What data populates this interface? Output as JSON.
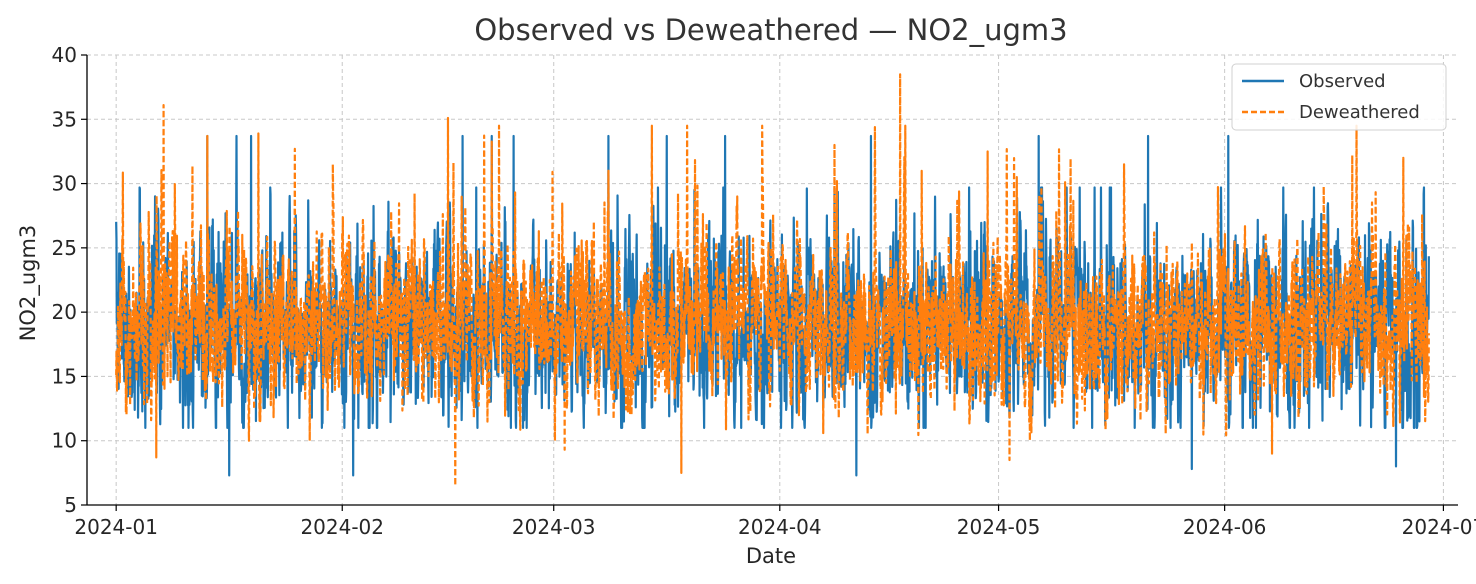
{
  "chart_data": {
    "type": "line",
    "title": "Observed vs Deweathered — NO2_ugm3",
    "xlabel": "Date",
    "ylabel": "NO2_ugm3",
    "ylim": [
      5,
      40
    ],
    "yticks": [
      5,
      10,
      15,
      20,
      25,
      30,
      35,
      40
    ],
    "xlim": [
      "2023-12-28",
      "2024-07-03"
    ],
    "xticks": [
      {
        "date": "2024-01-01",
        "label": "2024-01"
      },
      {
        "date": "2024-02-01",
        "label": "2024-02"
      },
      {
        "date": "2024-03-01",
        "label": "2024-03"
      },
      {
        "date": "2024-04-01",
        "label": "2024-04"
      },
      {
        "date": "2024-05-01",
        "label": "2024-05"
      },
      {
        "date": "2024-06-01",
        "label": "2024-06"
      },
      {
        "date": "2024-07-01",
        "label": "2024-07"
      }
    ],
    "grid": true,
    "legend_position": "top-right",
    "x_range": [
      "2024-01-01",
      "2024-06-29"
    ],
    "series": [
      {
        "name": "Observed",
        "color": "#1f77b4",
        "style": "solid",
        "typical_range": [
          7.5,
          33.7
        ],
        "mean": 18.7,
        "peaks": [
          {
            "x": "2024-01-13",
            "y": 33.7
          },
          {
            "x": "2024-01-17",
            "y": 33.7
          },
          {
            "x": "2024-01-19",
            "y": 33.7
          },
          {
            "x": "2024-02-17",
            "y": 33.7
          },
          {
            "x": "2024-02-21",
            "y": 33.7
          },
          {
            "x": "2024-02-24",
            "y": 33.7
          },
          {
            "x": "2024-03-08",
            "y": 33.7
          },
          {
            "x": "2024-03-16",
            "y": 33.7
          },
          {
            "x": "2024-03-24",
            "y": 33.7
          },
          {
            "x": "2024-04-13",
            "y": 33.7
          },
          {
            "x": "2024-05-06",
            "y": 33.7
          },
          {
            "x": "2024-05-21",
            "y": 33.7
          },
          {
            "x": "2024-06-01",
            "y": 33.7
          }
        ],
        "troughs": [
          {
            "x": "2024-01-16",
            "y": 7.3
          },
          {
            "x": "2024-02-02",
            "y": 7.3
          },
          {
            "x": "2024-04-11",
            "y": 7.3
          },
          {
            "x": "2024-05-27",
            "y": 7.8
          },
          {
            "x": "2024-06-24",
            "y": 8.0
          }
        ]
      },
      {
        "name": "Deweathered",
        "color": "#ff7f0e",
        "style": "dashed",
        "typical_range": [
          6.5,
          38.5
        ],
        "mean": 19.0,
        "peaks": [
          {
            "x": "2024-01-07",
            "y": 36.1
          },
          {
            "x": "2024-01-13",
            "y": 33.7
          },
          {
            "x": "2024-01-20",
            "y": 33.9
          },
          {
            "x": "2024-01-25",
            "y": 32.7
          },
          {
            "x": "2024-02-15",
            "y": 35.1
          },
          {
            "x": "2024-02-22",
            "y": 34.5
          },
          {
            "x": "2024-03-08",
            "y": 31.0
          },
          {
            "x": "2024-04-08",
            "y": 33.0
          },
          {
            "x": "2024-04-17",
            "y": 38.5
          },
          {
            "x": "2024-04-29",
            "y": 32.5
          },
          {
            "x": "2024-05-03",
            "y": 30.5
          },
          {
            "x": "2024-06-18",
            "y": 32.2
          },
          {
            "x": "2024-06-25",
            "y": 32.0
          }
        ],
        "troughs": [
          {
            "x": "2024-01-06",
            "y": 8.7
          },
          {
            "x": "2024-02-16",
            "y": 6.5
          },
          {
            "x": "2024-03-02",
            "y": 9.3
          },
          {
            "x": "2024-03-18",
            "y": 7.5
          },
          {
            "x": "2024-05-02",
            "y": 8.5
          },
          {
            "x": "2024-06-07",
            "y": 9.0
          }
        ]
      }
    ]
  }
}
